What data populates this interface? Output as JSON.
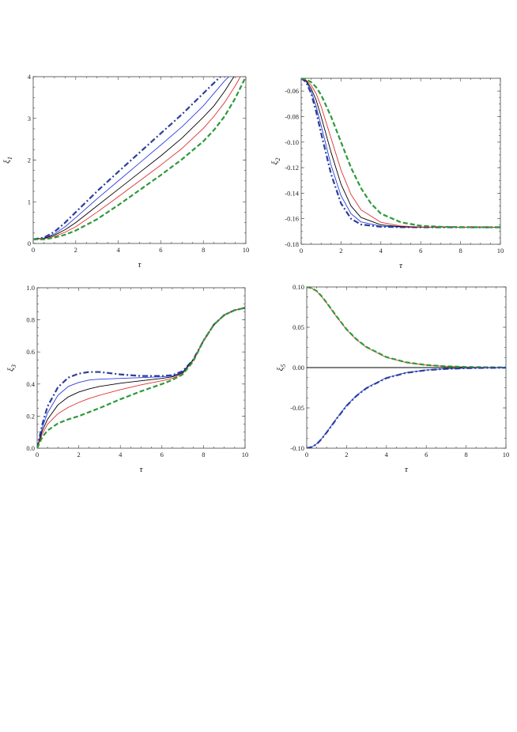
{
  "figure": {
    "panels_count": 4
  },
  "chart_data": [
    {
      "type": "line",
      "panel": "top-left",
      "xlabel": "τ",
      "ylabel": "ξ",
      "ylabel_sub": "1",
      "xlim": [
        0,
        10
      ],
      "ylim": [
        0,
        4
      ],
      "xticks": [
        0,
        2,
        4,
        6,
        8,
        10
      ],
      "yticks": [
        0,
        1,
        2,
        3,
        4
      ],
      "xtick_labels": [
        "0",
        "2",
        "4",
        "6",
        "8",
        "10"
      ],
      "ytick_labels": [
        "0",
        "1",
        "2",
        "3",
        "4"
      ],
      "grid": false,
      "series": [
        {
          "color": "#2b3f9a",
          "style": "dashdot",
          "width": 2.2,
          "x": [
            0,
            0.5,
            1,
            1.5,
            2,
            3,
            4,
            5,
            6,
            7,
            8,
            8.5,
            9
          ],
          "y": [
            0.1,
            0.14,
            0.28,
            0.5,
            0.75,
            1.25,
            1.72,
            2.18,
            2.64,
            3.1,
            3.6,
            3.85,
            4.1
          ]
        },
        {
          "color": "#2b3fe0",
          "style": "solid",
          "width": 0.9,
          "x": [
            0,
            0.5,
            1,
            1.5,
            2,
            3,
            4,
            5,
            6,
            7,
            8,
            8.5,
            9,
            9.3
          ],
          "y": [
            0.1,
            0.13,
            0.23,
            0.4,
            0.62,
            1.07,
            1.5,
            1.93,
            2.36,
            2.8,
            3.3,
            3.6,
            3.9,
            4.05
          ]
        },
        {
          "color": "#000000",
          "style": "solid",
          "width": 0.9,
          "x": [
            0,
            0.5,
            1,
            1.5,
            2,
            3,
            4,
            5,
            6,
            7,
            8,
            8.5,
            9,
            9.5
          ],
          "y": [
            0.1,
            0.12,
            0.2,
            0.33,
            0.5,
            0.9,
            1.3,
            1.7,
            2.1,
            2.53,
            3.03,
            3.3,
            3.65,
            4.05
          ]
        },
        {
          "color": "#e03030",
          "style": "solid",
          "width": 0.9,
          "x": [
            0,
            0.5,
            1,
            1.5,
            2,
            3,
            4,
            5,
            6,
            7,
            8,
            8.5,
            9,
            9.5,
            9.8
          ],
          "y": [
            0.1,
            0.11,
            0.17,
            0.27,
            0.4,
            0.75,
            1.12,
            1.5,
            1.88,
            2.28,
            2.76,
            3.05,
            3.38,
            3.78,
            4.05
          ]
        },
        {
          "color": "#2e9a3a",
          "style": "dashed",
          "width": 2.2,
          "x": [
            0,
            0.5,
            1,
            1.5,
            2,
            3,
            4,
            5,
            6,
            7,
            8,
            8.5,
            9,
            9.5,
            10
          ],
          "y": [
            0.1,
            0.1,
            0.14,
            0.21,
            0.31,
            0.58,
            0.92,
            1.28,
            1.64,
            2.02,
            2.45,
            2.72,
            3.05,
            3.48,
            4.0
          ]
        }
      ]
    },
    {
      "type": "line",
      "panel": "top-right",
      "xlabel": "τ",
      "ylabel": "ξ",
      "ylabel_sub": "2",
      "xlim": [
        0,
        10
      ],
      "ylim": [
        -0.18,
        -0.05
      ],
      "xticks": [
        0,
        2,
        4,
        6,
        8,
        10
      ],
      "yticks": [
        -0.06,
        -0.08,
        -0.1,
        -0.12,
        -0.14,
        -0.16,
        -0.18
      ],
      "xtick_labels": [
        "0",
        "2",
        "4",
        "6",
        "8",
        "10"
      ],
      "ytick_labels": [
        "-0.06",
        "-0.08",
        "-0.10",
        "-0.12",
        "-0.14",
        "-0.16",
        "-0.18"
      ],
      "grid": false,
      "series": [
        {
          "color": "#2b3f9a",
          "style": "dashdot",
          "width": 2.2,
          "x": [
            0,
            0.25,
            0.5,
            0.75,
            1,
            1.5,
            2,
            2.5,
            3,
            4,
            5,
            6,
            8,
            10
          ],
          "y": [
            -0.05,
            -0.053,
            -0.062,
            -0.076,
            -0.093,
            -0.125,
            -0.148,
            -0.16,
            -0.1645,
            -0.1663,
            -0.1666,
            -0.1667,
            -0.1667,
            -0.1667
          ]
        },
        {
          "color": "#2b3fe0",
          "style": "solid",
          "width": 0.9,
          "x": [
            0,
            0.25,
            0.5,
            0.75,
            1,
            1.5,
            2,
            2.5,
            3,
            4,
            5,
            6,
            8,
            10
          ],
          "y": [
            -0.05,
            -0.0525,
            -0.06,
            -0.072,
            -0.087,
            -0.118,
            -0.142,
            -0.156,
            -0.1625,
            -0.1658,
            -0.1665,
            -0.1667,
            -0.1667,
            -0.1667
          ]
        },
        {
          "color": "#000000",
          "style": "solid",
          "width": 0.9,
          "x": [
            0,
            0.25,
            0.5,
            0.75,
            1,
            1.5,
            2,
            2.5,
            3,
            4,
            5,
            6,
            8,
            10
          ],
          "y": [
            -0.05,
            -0.052,
            -0.058,
            -0.067,
            -0.08,
            -0.108,
            -0.133,
            -0.15,
            -0.159,
            -0.1648,
            -0.1662,
            -0.1666,
            -0.1667,
            -0.1667
          ]
        },
        {
          "color": "#e03030",
          "style": "solid",
          "width": 0.9,
          "x": [
            0,
            0.25,
            0.5,
            0.75,
            1,
            1.5,
            2,
            2.5,
            3,
            4,
            5,
            6,
            8,
            10
          ],
          "y": [
            -0.05,
            -0.0515,
            -0.0555,
            -0.062,
            -0.072,
            -0.097,
            -0.122,
            -0.141,
            -0.153,
            -0.1628,
            -0.1657,
            -0.1665,
            -0.1667,
            -0.1667
          ]
        },
        {
          "color": "#2e9a3a",
          "style": "dashed",
          "width": 2.2,
          "x": [
            0,
            0.25,
            0.5,
            0.75,
            1,
            1.5,
            2,
            2.5,
            3,
            3.5,
            4,
            5,
            6,
            7,
            8,
            10
          ],
          "y": [
            -0.05,
            -0.051,
            -0.053,
            -0.057,
            -0.063,
            -0.08,
            -0.1,
            -0.12,
            -0.136,
            -0.148,
            -0.156,
            -0.1628,
            -0.1655,
            -0.1663,
            -0.1666,
            -0.1667
          ]
        }
      ]
    },
    {
      "type": "line",
      "panel": "bottom-left",
      "xlabel": "τ",
      "ylabel": "ξ",
      "ylabel_sub": "3",
      "xlim": [
        0,
        10
      ],
      "ylim": [
        0,
        1.0
      ],
      "xticks": [
        0,
        2,
        4,
        6,
        8,
        10
      ],
      "yticks": [
        0,
        0.2,
        0.4,
        0.6,
        0.8,
        1.0
      ],
      "xtick_labels": [
        "0",
        "2",
        "4",
        "6",
        "8",
        "10"
      ],
      "ytick_labels": [
        "0.0",
        "0.2",
        "0.4",
        "0.6",
        "0.8",
        "1.0"
      ],
      "grid": false,
      "series": [
        {
          "color": "#2b3f9a",
          "style": "dashdot",
          "width": 2.2,
          "x": [
            0,
            0.25,
            0.5,
            1,
            1.5,
            2,
            2.5,
            3,
            4,
            5,
            6,
            6.5,
            7,
            7.5,
            8,
            8.5,
            9,
            9.5,
            10
          ],
          "y": [
            0,
            0.15,
            0.26,
            0.38,
            0.44,
            0.465,
            0.475,
            0.475,
            0.46,
            0.45,
            0.45,
            0.455,
            0.48,
            0.55,
            0.67,
            0.77,
            0.83,
            0.86,
            0.875
          ]
        },
        {
          "color": "#2b3fe0",
          "style": "solid",
          "width": 0.9,
          "x": [
            0,
            0.25,
            0.5,
            1,
            1.5,
            2,
            2.5,
            3,
            4,
            5,
            6,
            6.5,
            7,
            7.5,
            8,
            8.5,
            9,
            9.5,
            10
          ],
          "y": [
            0,
            0.13,
            0.22,
            0.33,
            0.385,
            0.41,
            0.425,
            0.43,
            0.435,
            0.44,
            0.445,
            0.45,
            0.475,
            0.55,
            0.67,
            0.77,
            0.83,
            0.86,
            0.875
          ]
        },
        {
          "color": "#000000",
          "style": "solid",
          "width": 0.9,
          "x": [
            0,
            0.25,
            0.5,
            1,
            1.5,
            2,
            2.5,
            3,
            4,
            5,
            6,
            6.5,
            7,
            7.5,
            8,
            8.5,
            9,
            9.5,
            10
          ],
          "y": [
            0,
            0.11,
            0.18,
            0.27,
            0.32,
            0.35,
            0.37,
            0.385,
            0.405,
            0.42,
            0.435,
            0.445,
            0.47,
            0.55,
            0.67,
            0.77,
            0.83,
            0.86,
            0.875
          ]
        },
        {
          "color": "#e03030",
          "style": "solid",
          "width": 0.9,
          "x": [
            0,
            0.25,
            0.5,
            1,
            1.5,
            2,
            2.5,
            3,
            4,
            5,
            6,
            6.5,
            7,
            7.5,
            8,
            8.5,
            9,
            9.5,
            10
          ],
          "y": [
            0,
            0.09,
            0.15,
            0.215,
            0.255,
            0.285,
            0.31,
            0.33,
            0.365,
            0.395,
            0.42,
            0.435,
            0.465,
            0.545,
            0.67,
            0.77,
            0.83,
            0.86,
            0.875
          ]
        },
        {
          "color": "#2e9a3a",
          "style": "dashed",
          "width": 2.2,
          "x": [
            0,
            0.25,
            0.5,
            1,
            1.5,
            2,
            2.5,
            3,
            4,
            5,
            6,
            6.5,
            7,
            7.5,
            8,
            8.5,
            9,
            9.5,
            10
          ],
          "y": [
            0,
            0.07,
            0.11,
            0.155,
            0.18,
            0.2,
            0.225,
            0.25,
            0.305,
            0.355,
            0.4,
            0.425,
            0.46,
            0.54,
            0.67,
            0.77,
            0.83,
            0.86,
            0.875
          ]
        }
      ]
    },
    {
      "type": "line",
      "panel": "bottom-right",
      "xlabel": "τ",
      "ylabel": "ξ",
      "ylabel_sub": "5",
      "xlim": [
        0,
        10
      ],
      "ylim": [
        -0.1,
        0.1
      ],
      "xticks": [
        0,
        2,
        4,
        6,
        8,
        10
      ],
      "yticks": [
        -0.1,
        -0.05,
        0,
        0.05,
        0.1
      ],
      "xtick_labels": [
        "0",
        "2",
        "4",
        "6",
        "8",
        "10"
      ],
      "ytick_labels": [
        "-0.10",
        "-0.05",
        "0.00",
        "0.05",
        "0.10"
      ],
      "grid": false,
      "zero_line": true,
      "series": [
        {
          "color": "#e03030",
          "style": "solid",
          "width": 0.9,
          "x": [
            0,
            0.25,
            0.5,
            0.75,
            1,
            1.5,
            2,
            2.5,
            3,
            4,
            5,
            6,
            7,
            8,
            9,
            10
          ],
          "y": [
            0.1,
            0.0985,
            0.0945,
            0.088,
            0.08,
            0.063,
            0.047,
            0.0345,
            0.025,
            0.0125,
            0.0062,
            0.003,
            0.0015,
            0.0007,
            0.0003,
            0.0001
          ]
        },
        {
          "color": "#2e9a3a",
          "style": "dashed",
          "width": 2.2,
          "x": [
            0,
            0.25,
            0.5,
            0.75,
            1,
            1.5,
            2,
            2.5,
            3,
            4,
            5,
            6,
            7,
            8,
            9,
            10
          ],
          "y": [
            0.1,
            0.0985,
            0.095,
            0.0885,
            0.0805,
            0.0635,
            0.0475,
            0.035,
            0.0255,
            0.013,
            0.0065,
            0.0032,
            0.0016,
            0.0008,
            0.0004,
            0.0002
          ]
        },
        {
          "color": "#2b3fe0",
          "style": "solid",
          "width": 0.9,
          "x": [
            0,
            0.25,
            0.5,
            0.75,
            1,
            1.5,
            2,
            2.5,
            3,
            4,
            5,
            6,
            7,
            8,
            9,
            10
          ],
          "y": [
            -0.1,
            -0.0985,
            -0.0945,
            -0.088,
            -0.08,
            -0.063,
            -0.047,
            -0.0345,
            -0.025,
            -0.0125,
            -0.0062,
            -0.003,
            -0.0015,
            -0.0007,
            -0.0003,
            -0.0001
          ]
        },
        {
          "color": "#2b3f9a",
          "style": "dashdot",
          "width": 2.2,
          "x": [
            0,
            0.25,
            0.5,
            0.75,
            1,
            1.5,
            2,
            2.5,
            3,
            4,
            5,
            6,
            7,
            8,
            9,
            10
          ],
          "y": [
            -0.1,
            -0.0985,
            -0.095,
            -0.0885,
            -0.0805,
            -0.0635,
            -0.0475,
            -0.035,
            -0.0255,
            -0.013,
            -0.0065,
            -0.0032,
            -0.0016,
            -0.0008,
            -0.0004,
            -0.0002
          ]
        }
      ]
    }
  ]
}
